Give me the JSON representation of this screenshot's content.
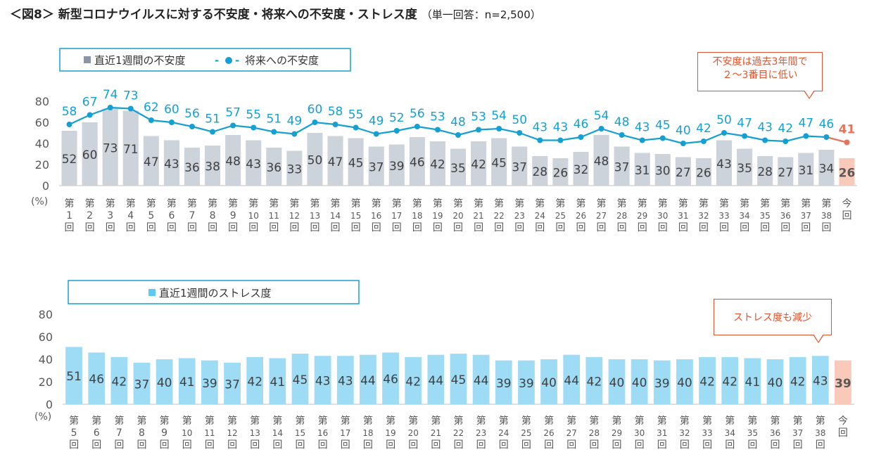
{
  "figure": {
    "title": "＜図8＞ 新型コロナウイルスに対する不安度・将来への不安度・ストレス度",
    "note": "（単一回答：n=2,500）"
  },
  "callouts": {
    "top": {
      "line1": "不安度は過去3年間で",
      "line2": "２～3番目に低い"
    },
    "bottom": {
      "text": "ストレス度も減少"
    }
  },
  "colors": {
    "gray_bar": "#cdd3da",
    "blue_line": "#14a0d2",
    "blue_bar": "#9edcf6",
    "highlight_bar": "#f9c9b9",
    "highlight_text": "#e8735a",
    "axis_text": "#595959"
  },
  "chart_data": [
    {
      "type": "bar",
      "combo_line_series": "将来への不安度",
      "ylim": [
        0,
        80
      ],
      "yticks": [
        0,
        20,
        40,
        60,
        80
      ],
      "yunit": "(%)",
      "legend": {
        "bar": "直近1週間の不安度",
        "line": "将来への不安度",
        "line_prefix": "-",
        "line_suffix": "-"
      },
      "categories": [
        "第1回",
        "第2回",
        "第3回",
        "第4回",
        "第5回",
        "第6回",
        "第7回",
        "第8回",
        "第9回",
        "第10回",
        "第11回",
        "第12回",
        "第13回",
        "第14回",
        "第15回",
        "第16回",
        "第17回",
        "第18回",
        "第19回",
        "第20回",
        "第21回",
        "第22回",
        "第23回",
        "第24回",
        "第25回",
        "第26回",
        "第27回",
        "第28回",
        "第29回",
        "第30回",
        "第31回",
        "第32回",
        "第33回",
        "第34回",
        "第35回",
        "第36回",
        "第37回",
        "第38回",
        "今回"
      ],
      "series": [
        {
          "name": "直近1週間の不安度",
          "kind": "bar",
          "values": [
            52,
            60,
            73,
            71,
            47,
            43,
            36,
            38,
            48,
            43,
            36,
            33,
            50,
            47,
            45,
            37,
            39,
            46,
            42,
            35,
            42,
            45,
            37,
            28,
            26,
            32,
            48,
            37,
            31,
            30,
            27,
            26,
            43,
            35,
            28,
            27,
            31,
            34,
            26
          ]
        },
        {
          "name": "将来への不安度",
          "kind": "line",
          "values": [
            58,
            67,
            74,
            73,
            62,
            60,
            56,
            51,
            57,
            55,
            51,
            49,
            60,
            58,
            55,
            49,
            52,
            56,
            53,
            48,
            53,
            54,
            50,
            43,
            43,
            46,
            54,
            48,
            43,
            45,
            40,
            42,
            50,
            47,
            43,
            42,
            47,
            46,
            41
          ]
        }
      ]
    },
    {
      "type": "bar",
      "ylim": [
        0,
        80
      ],
      "yticks": [
        0,
        20,
        40,
        60,
        80
      ],
      "yunit": "(%)",
      "legend": {
        "bar": "直近1週間のストレス度"
      },
      "categories": [
        "第5回",
        "第6回",
        "第7回",
        "第8回",
        "第9回",
        "第10回",
        "第11回",
        "第12回",
        "第13回",
        "第14回",
        "第15回",
        "第16回",
        "第17回",
        "第18回",
        "第19回",
        "第20回",
        "第21回",
        "第22回",
        "第23回",
        "第24回",
        "第25回",
        "第26回",
        "第27回",
        "第28回",
        "第29回",
        "第30回",
        "第31回",
        "第32回",
        "第33回",
        "第34回",
        "第35回",
        "第36回",
        "第37回",
        "第38回",
        "今回"
      ],
      "series": [
        {
          "name": "直近1週間のストレス度",
          "kind": "bar",
          "values": [
            51,
            46,
            42,
            37,
            40,
            41,
            39,
            37,
            42,
            41,
            45,
            43,
            43,
            44,
            46,
            42,
            44,
            45,
            44,
            39,
            39,
            40,
            44,
            42,
            40,
            40,
            39,
            40,
            42,
            42,
            41,
            40,
            42,
            43,
            39
          ]
        }
      ]
    }
  ]
}
